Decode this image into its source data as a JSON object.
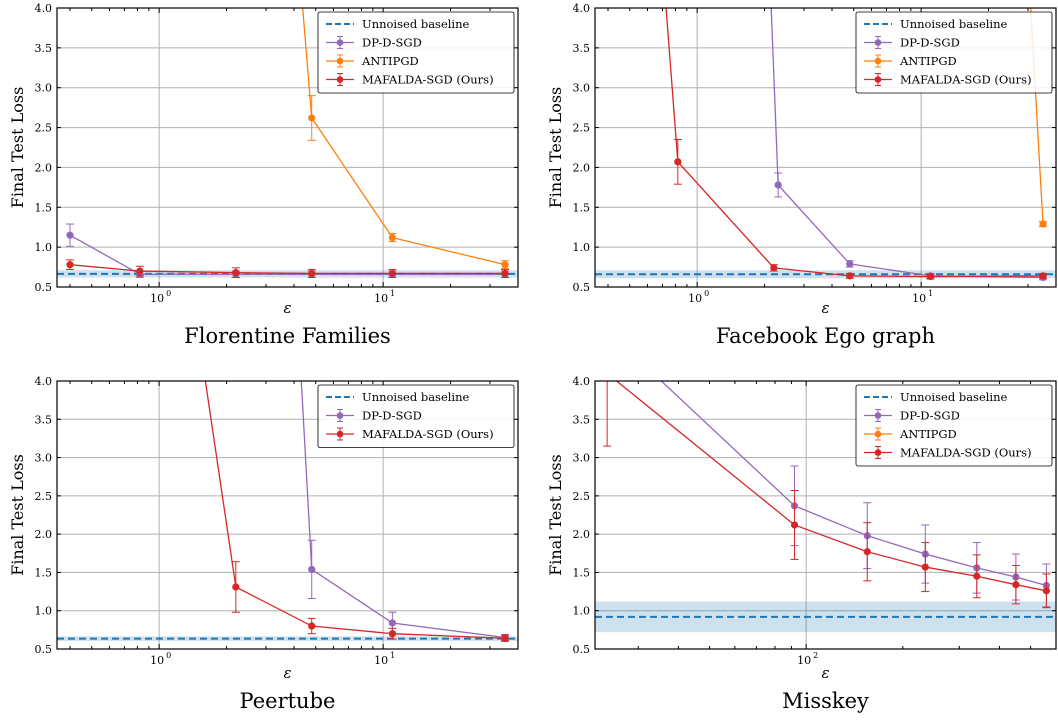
{
  "chart_data": [
    {
      "type": "line",
      "title": "Florentine Families",
      "xlabel": "ε",
      "ylabel": "Final Test Loss",
      "xscale": "log",
      "xlim": [
        0.35,
        40
      ],
      "ylim": [
        0.5,
        4.0
      ],
      "yticks": [
        "0.5",
        "1.0",
        "1.5",
        "2.0",
        "2.5",
        "3.0",
        "3.5",
        "4.0"
      ],
      "xticks": [
        {
          "value": 1,
          "base": "10",
          "exp": "0"
        },
        {
          "value": 10,
          "base": "10",
          "exp": "1"
        }
      ],
      "grid": true,
      "legend_position": "top-right",
      "baseline": {
        "name": "Unnoised baseline",
        "value": 0.665,
        "band": [
          0.62,
          0.71
        ]
      },
      "series": [
        {
          "name": "DP-D-SGD",
          "color": "#9467bd",
          "markers": true,
          "x": [
            0.4,
            0.82,
            2.2,
            4.8,
            11,
            35
          ],
          "y": [
            1.15,
            0.66,
            0.66,
            0.66,
            0.66,
            0.66
          ],
          "err": [
            0.14,
            0.04,
            0.04,
            0.04,
            0.04,
            0.04
          ]
        },
        {
          "name": "ANTIPGD",
          "color": "#ff7f0e",
          "markers": true,
          "x": [
            4.2,
            4.8,
            11,
            35
          ],
          "y": [
            4.6,
            2.62,
            1.12,
            0.78
          ],
          "err": [
            0,
            0.28,
            0.05,
            0.05
          ],
          "show": [
            false,
            true,
            true,
            true
          ]
        },
        {
          "name": "MAFALDA-SGD (Ours)",
          "color": "#d62728",
          "markers": true,
          "x": [
            0.4,
            0.82,
            2.2,
            4.8,
            11,
            35
          ],
          "y": [
            0.78,
            0.7,
            0.68,
            0.67,
            0.67,
            0.67
          ],
          "err": [
            0.06,
            0.06,
            0.06,
            0.05,
            0.05,
            0.05
          ]
        }
      ]
    },
    {
      "type": "line",
      "title": "Facebook Ego graph",
      "xlabel": "ε",
      "ylabel": "Final Test Loss",
      "xscale": "log",
      "xlim": [
        0.35,
        40
      ],
      "ylim": [
        0.5,
        4.0
      ],
      "yticks": [
        "0.5",
        "1.0",
        "1.5",
        "2.0",
        "2.5",
        "3.0",
        "3.5",
        "4.0"
      ],
      "xticks": [
        {
          "value": 1,
          "base": "10",
          "exp": "0"
        },
        {
          "value": 10,
          "base": "10",
          "exp": "1"
        }
      ],
      "grid": true,
      "legend_position": "top-right",
      "baseline": {
        "name": "Unnoised baseline",
        "value": 0.66,
        "band": [
          0.61,
          0.71
        ]
      },
      "series": [
        {
          "name": "DP-D-SGD",
          "color": "#9467bd",
          "markers": true,
          "x": [
            2.1,
            2.3,
            4.8,
            11,
            35
          ],
          "y": [
            4.6,
            1.78,
            0.79,
            0.64,
            0.62
          ],
          "err": [
            0,
            0.15,
            0.04,
            0.03,
            0.03
          ],
          "show": [
            false,
            true,
            true,
            true,
            true
          ]
        },
        {
          "name": "ANTIPGD",
          "color": "#ff7f0e",
          "markers": true,
          "x": [
            30,
            35
          ],
          "y": [
            4.6,
            1.29
          ],
          "err": [
            0,
            0.03
          ],
          "show": [
            false,
            true
          ]
        },
        {
          "name": "MAFALDA-SGD (Ours)",
          "color": "#d62728",
          "markers": true,
          "x": [
            0.7,
            0.82,
            2.2,
            4.8,
            11,
            35
          ],
          "y": [
            4.6,
            2.07,
            0.74,
            0.64,
            0.63,
            0.64
          ],
          "err": [
            0,
            0.28,
            0.04,
            0.03,
            0.03,
            0.03
          ],
          "show": [
            false,
            true,
            true,
            true,
            true,
            true
          ]
        }
      ]
    },
    {
      "type": "line",
      "title": "Peertube",
      "xlabel": "ε",
      "ylabel": "Final Test Loss",
      "xscale": "log",
      "xlim": [
        0.35,
        40
      ],
      "ylim": [
        0.5,
        4.0
      ],
      "yticks": [
        "0.5",
        "1.0",
        "1.5",
        "2.0",
        "2.5",
        "3.0",
        "3.5",
        "4.0"
      ],
      "xticks": [
        {
          "value": 1,
          "base": "10",
          "exp": "0"
        },
        {
          "value": 10,
          "base": "10",
          "exp": "1"
        }
      ],
      "grid": true,
      "legend_position": "top-right",
      "baseline": {
        "name": "Unnoised baseline",
        "value": 0.635,
        "band": [
          0.605,
          0.665
        ]
      },
      "series": [
        {
          "name": "DP-D-SGD",
          "color": "#9467bd",
          "markers": true,
          "x": [
            4.2,
            4.8,
            11,
            35
          ],
          "y": [
            4.6,
            1.54,
            0.84,
            0.65
          ],
          "err": [
            0,
            0.38,
            0.14,
            0.04
          ],
          "show": [
            false,
            true,
            true,
            true
          ]
        },
        {
          "name": "MAFALDA-SGD (Ours)",
          "color": "#d62728",
          "markers": true,
          "x": [
            1.5,
            2.2,
            4.8,
            11,
            35
          ],
          "y": [
            4.6,
            1.31,
            0.8,
            0.7,
            0.64
          ],
          "err": [
            0,
            0.33,
            0.1,
            0.07,
            0.04
          ],
          "show": [
            false,
            true,
            true,
            true,
            true
          ]
        }
      ]
    },
    {
      "type": "line",
      "title": "Misskey",
      "xlabel": "ε",
      "ylabel": "Final Test Loss",
      "xscale": "log",
      "xlim": [
        22,
        600
      ],
      "ylim": [
        0.5,
        4.0
      ],
      "yticks": [
        "0.5",
        "1.0",
        "1.5",
        "2.0",
        "2.5",
        "3.0",
        "3.5",
        "4.0"
      ],
      "xticks": [
        {
          "value": 100,
          "base": "10",
          "exp": "2"
        }
      ],
      "grid": true,
      "legend_position": "top-right",
      "baseline": {
        "name": "Unnoised baseline",
        "value": 0.92,
        "band": [
          0.72,
          1.12
        ]
      },
      "series": [
        {
          "name": "DP-D-SGD",
          "color": "#9467bd",
          "markers": true,
          "x": [
            28,
            92,
            155,
            235,
            340,
            450,
            560
          ],
          "y": [
            4.4,
            2.37,
            1.98,
            1.74,
            1.56,
            1.44,
            1.33
          ],
          "err": [
            0,
            0.52,
            0.43,
            0.38,
            0.33,
            0.3,
            0.28
          ],
          "show": [
            false,
            true,
            true,
            true,
            true,
            true,
            true
          ]
        },
        {
          "name": "ANTIPGD",
          "color": "#ff7f0e",
          "markers": false,
          "x": [],
          "y": [],
          "err": []
        },
        {
          "name": "MAFALDA-SGD (Ours)",
          "color": "#d62728",
          "markers": true,
          "x": [
            24,
            92,
            155,
            235,
            340,
            450,
            560
          ],
          "y": [
            4.1,
            2.12,
            1.77,
            1.57,
            1.45,
            1.34,
            1.26
          ],
          "err": [
            0.95,
            0.45,
            0.38,
            0.32,
            0.28,
            0.25,
            0.22
          ],
          "show": [
            true,
            true,
            true,
            true,
            true,
            true,
            true
          ]
        }
      ]
    }
  ]
}
